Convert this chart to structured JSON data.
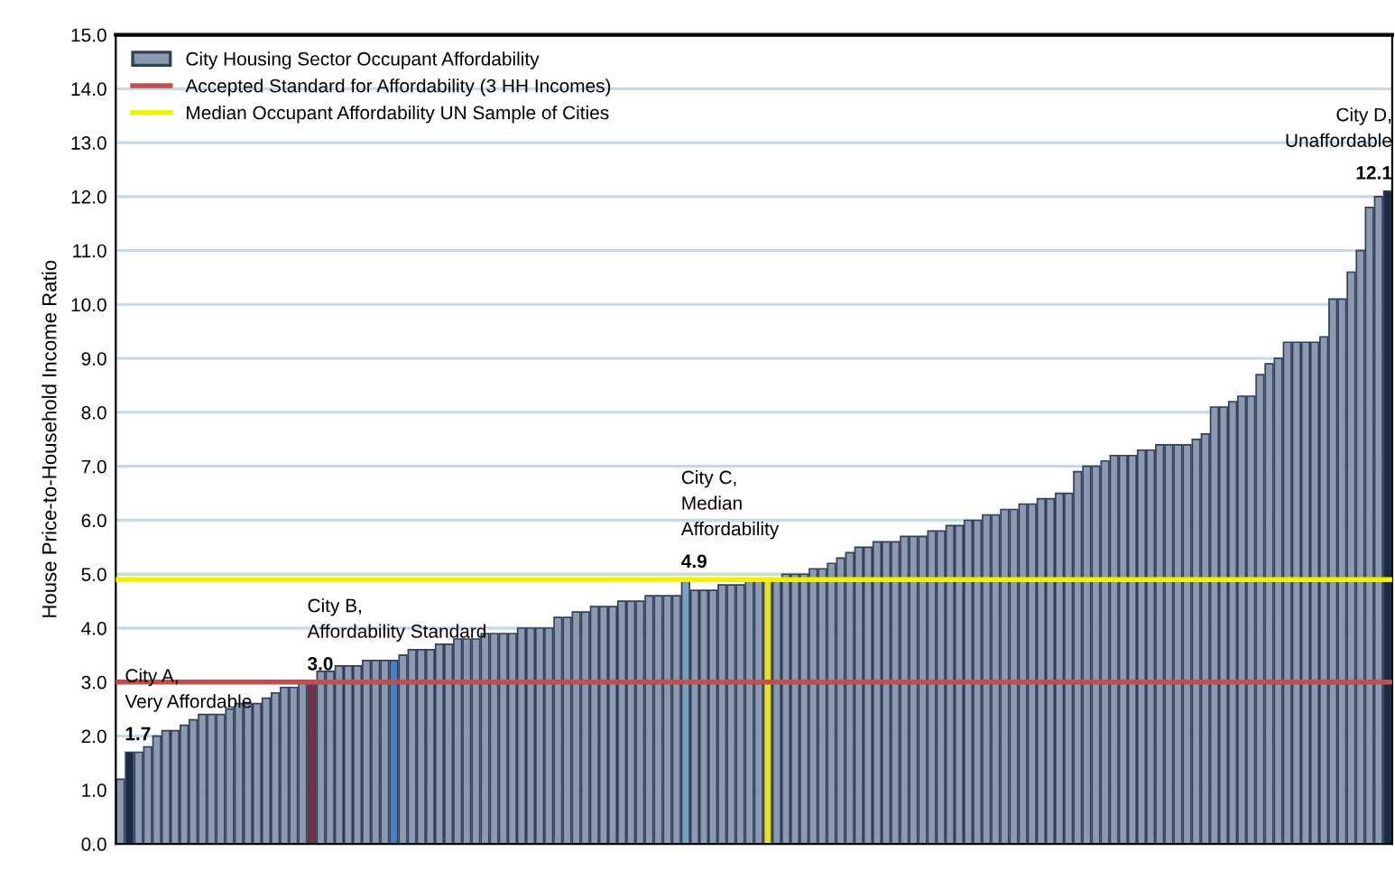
{
  "chart_data": {
    "type": "bar",
    "ylabel": "House Price-to-Household Income Ratio",
    "categories": [
      null,
      null,
      null,
      null,
      null,
      null,
      null,
      null,
      null,
      null,
      null,
      null,
      null,
      null,
      null,
      null,
      null,
      null,
      null,
      null,
      null,
      null,
      null,
      null,
      null,
      null,
      null,
      null,
      null,
      null,
      null,
      null,
      null,
      null,
      null,
      null,
      null,
      null,
      null,
      null,
      null,
      null,
      null,
      null,
      null,
      null,
      null,
      null,
      null,
      null,
      null,
      null,
      null,
      null,
      null,
      null,
      null,
      null,
      null,
      null,
      null,
      null,
      null,
      null,
      null,
      null,
      null,
      null,
      null,
      null,
      null,
      null,
      null,
      null,
      null,
      null,
      null,
      null,
      null,
      null,
      null,
      null,
      null,
      null,
      null,
      null,
      null,
      null,
      null,
      null,
      null,
      null,
      null,
      null,
      null,
      null,
      null,
      null,
      null,
      null,
      null,
      null,
      null,
      null,
      null,
      null,
      null,
      null,
      null,
      null,
      null,
      null,
      null,
      null,
      null,
      null,
      null,
      null,
      null,
      null,
      null,
      null,
      null,
      null,
      null,
      null,
      null,
      null,
      null,
      null,
      null,
      null,
      null,
      null,
      null,
      null,
      null,
      null,
      null,
      null
    ],
    "series": [
      {
        "name": "City Housing Sector Occupant Affordability",
        "color": "#8d99ae",
        "values": [
          1.2,
          1.7,
          1.7,
          1.8,
          2.0,
          2.1,
          2.1,
          2.2,
          2.3,
          2.4,
          2.4,
          2.4,
          2.5,
          2.6,
          2.6,
          2.6,
          2.7,
          2.8,
          2.9,
          2.9,
          3.0,
          3.0,
          3.2,
          3.2,
          3.3,
          3.3,
          3.3,
          3.4,
          3.4,
          3.4,
          3.4,
          3.5,
          3.6,
          3.6,
          3.6,
          3.7,
          3.7,
          3.8,
          3.8,
          3.8,
          3.9,
          3.9,
          3.9,
          3.9,
          4.0,
          4.0,
          4.0,
          4.0,
          4.2,
          4.2,
          4.3,
          4.3,
          4.4,
          4.4,
          4.4,
          4.5,
          4.5,
          4.5,
          4.6,
          4.6,
          4.6,
          4.6,
          4.9,
          4.7,
          4.7,
          4.7,
          4.8,
          4.8,
          4.8,
          4.9,
          4.9,
          4.9,
          4.9,
          5.0,
          5.0,
          5.0,
          5.1,
          5.1,
          5.2,
          5.3,
          5.4,
          5.5,
          5.5,
          5.6,
          5.6,
          5.6,
          5.7,
          5.7,
          5.7,
          5.8,
          5.8,
          5.9,
          5.9,
          6.0,
          6.0,
          6.1,
          6.1,
          6.2,
          6.2,
          6.3,
          6.3,
          6.4,
          6.4,
          6.5,
          6.5,
          6.9,
          7.0,
          7.0,
          7.1,
          7.2,
          7.2,
          7.2,
          7.3,
          7.3,
          7.4,
          7.4,
          7.4,
          7.4,
          7.5,
          7.6,
          8.1,
          8.1,
          8.2,
          8.3,
          8.3,
          8.7,
          8.9,
          9.0,
          9.3,
          9.3,
          9.3,
          9.3,
          9.4,
          10.1,
          10.1,
          10.6,
          11.0,
          11.8,
          12.0,
          12.1
        ],
        "value_labels": [
          null,
          "1.7",
          null,
          null,
          null,
          null,
          null,
          null,
          null,
          null,
          null,
          null,
          null,
          null,
          null,
          null,
          null,
          null,
          null,
          null,
          null,
          "3.0",
          null,
          null,
          null,
          null,
          null,
          null,
          null,
          null,
          null,
          null,
          null,
          null,
          null,
          null,
          null,
          null,
          null,
          null,
          null,
          null,
          null,
          null,
          null,
          null,
          null,
          null,
          null,
          null,
          null,
          null,
          null,
          null,
          null,
          null,
          null,
          null,
          null,
          null,
          null,
          null,
          "4.9",
          null,
          null,
          null,
          null,
          null,
          null,
          null,
          null,
          null,
          null,
          null,
          null,
          null,
          null,
          null,
          null,
          null,
          null,
          null,
          null,
          null,
          null,
          null,
          null,
          null,
          null,
          null,
          null,
          null,
          null,
          null,
          null,
          null,
          null,
          null,
          null,
          null,
          null,
          null,
          null,
          null,
          null,
          null,
          null,
          null,
          null,
          null,
          null,
          null,
          null,
          null,
          null,
          null,
          null,
          null,
          null,
          null,
          null,
          null,
          null,
          null,
          null,
          null,
          null,
          null,
          null,
          null,
          null,
          null,
          null,
          null,
          null,
          null,
          null,
          null,
          null,
          "12.1"
        ],
        "colors": [
          "#8d99ae",
          "#1c2b45",
          "#8d99ae",
          "#8d99ae",
          "#8d99ae",
          "#8d99ae",
          "#8d99ae",
          "#8d99ae",
          "#8d99ae",
          "#8d99ae",
          "#8d99ae",
          "#8d99ae",
          "#8d99ae",
          "#8d99ae",
          "#8d99ae",
          "#8d99ae",
          "#8d99ae",
          "#8d99ae",
          "#8d99ae",
          "#8d99ae",
          "#8d99ae",
          "#7a3040",
          "#8d99ae",
          "#8d99ae",
          "#8d99ae",
          "#8d99ae",
          "#8d99ae",
          "#8d99ae",
          "#8d99ae",
          "#8d99ae",
          "#4a7fc1",
          "#8d99ae",
          "#8d99ae",
          "#8d99ae",
          "#8d99ae",
          "#8d99ae",
          "#8d99ae",
          "#8d99ae",
          "#8d99ae",
          "#8d99ae",
          "#8d99ae",
          "#8d99ae",
          "#8d99ae",
          "#8d99ae",
          "#8d99ae",
          "#8d99ae",
          "#8d99ae",
          "#8d99ae",
          "#8d99ae",
          "#8d99ae",
          "#8d99ae",
          "#8d99ae",
          "#8d99ae",
          "#8d99ae",
          "#8d99ae",
          "#8d99ae",
          "#8d99ae",
          "#8d99ae",
          "#8d99ae",
          "#8d99ae",
          "#8d99ae",
          "#8d99ae",
          "#7f9fbf",
          "#8d99ae",
          "#8d99ae",
          "#8d99ae",
          "#8d99ae",
          "#8d99ae",
          "#8d99ae",
          "#8d99ae",
          "#8d99ae",
          "#e8e020",
          "#8d99ae",
          "#8d99ae",
          "#8d99ae",
          "#8d99ae",
          "#8d99ae",
          "#8d99ae",
          "#8d99ae",
          "#8d99ae",
          "#8d99ae",
          "#8d99ae",
          "#8d99ae",
          "#8d99ae",
          "#8d99ae",
          "#8d99ae",
          "#8d99ae",
          "#8d99ae",
          "#8d99ae",
          "#8d99ae",
          "#8d99ae",
          "#8d99ae",
          "#8d99ae",
          "#8d99ae",
          "#8d99ae",
          "#8d99ae",
          "#8d99ae",
          "#8d99ae",
          "#8d99ae",
          "#8d99ae",
          "#8d99ae",
          "#8d99ae",
          "#8d99ae",
          "#8d99ae",
          "#8d99ae",
          "#8d99ae",
          "#8d99ae",
          "#8d99ae",
          "#8d99ae",
          "#8d99ae",
          "#8d99ae",
          "#8d99ae",
          "#8d99ae",
          "#8d99ae",
          "#8d99ae",
          "#8d99ae",
          "#8d99ae",
          "#8d99ae",
          "#8d99ae",
          "#8d99ae",
          "#8d99ae",
          "#8d99ae",
          "#8d99ae",
          "#8d99ae",
          "#8d99ae",
          "#8d99ae",
          "#8d99ae",
          "#8d99ae",
          "#8d99ae",
          "#8d99ae",
          "#8d99ae",
          "#8d99ae",
          "#8d99ae",
          "#8d99ae",
          "#8d99ae",
          "#8d99ae",
          "#8d99ae",
          "#8d99ae",
          "#8d99ae",
          "#1c2b45"
        ]
      }
    ],
    "annotations": [
      "City A,\nVery Affordable",
      "City B,\nAffordability Standard",
      "City C,\nMedian\nAffordability",
      "City D,\nUnaffordable"
    ],
    "ref_lines": [
      {
        "axis": "y",
        "value": 3.0,
        "label": "Accepted Standard for Affordability (3 HH Incomes)",
        "color": "#c0504d"
      },
      {
        "axis": "y",
        "value": 4.9,
        "label": "Median Occupant Affordability UN Sample of Cities",
        "color": "#f2f200"
      }
    ],
    "ylim": [
      0,
      15
    ],
    "yticks": [
      {
        "value": 0,
        "label": "0.0"
      },
      {
        "value": 1,
        "label": "1.0"
      },
      {
        "value": 2,
        "label": "2.0"
      },
      {
        "value": 3,
        "label": "3.0"
      },
      {
        "value": 4,
        "label": "4.0"
      },
      {
        "value": 5,
        "label": "5.0"
      },
      {
        "value": 6,
        "label": "6.0"
      },
      {
        "value": 7,
        "label": "7.0"
      },
      {
        "value": 8,
        "label": "8.0"
      },
      {
        "value": 9,
        "label": "9.0"
      },
      {
        "value": 10,
        "label": "10.0"
      },
      {
        "value": 11,
        "label": "11.0"
      },
      {
        "value": 12,
        "label": "12.0"
      },
      {
        "value": 13,
        "label": "13.0"
      },
      {
        "value": 14,
        "label": "14.0"
      },
      {
        "value": 15,
        "label": "15.0"
      }
    ],
    "grid": "y",
    "legend": "top left",
    "tick_labels": "y"
  }
}
